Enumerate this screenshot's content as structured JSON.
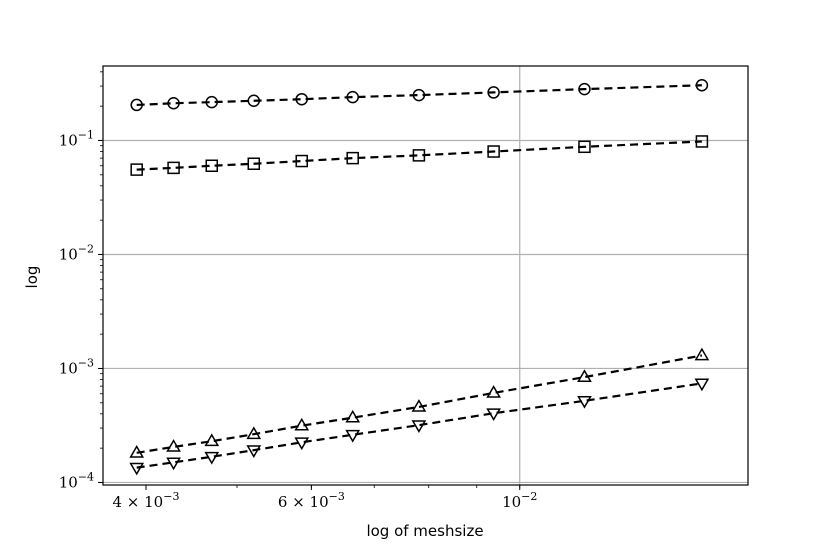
{
  "chart_data": {
    "type": "line",
    "xlabel": "log of meshsize",
    "ylabel": "log",
    "x_scale": "log",
    "y_scale": "log",
    "xlim": [
      0.0036,
      0.0175
    ],
    "ylim": [
      9.5e-05,
      0.45
    ],
    "grid": true,
    "x_ticks": [
      {
        "value": 0.004,
        "mantissa": "4",
        "exponent": "−3"
      },
      {
        "value": 0.006,
        "mantissa": "6",
        "exponent": "−3"
      },
      {
        "value": 0.01,
        "mantissa": "",
        "exponent": "−2"
      }
    ],
    "y_ticks": [
      {
        "value": 0.0001,
        "exponent": "−4"
      },
      {
        "value": 0.001,
        "exponent": "−3"
      },
      {
        "value": 0.01,
        "exponent": "−2"
      },
      {
        "value": 0.1,
        "exponent": "−1"
      }
    ],
    "x": [
      0.00391,
      0.00428,
      0.0047,
      0.00521,
      0.00586,
      0.00664,
      0.00781,
      0.00938,
      0.01172,
      0.01563
    ],
    "series": [
      {
        "marker": "circle",
        "values": [
          0.205,
          0.212,
          0.217,
          0.223,
          0.23,
          0.24,
          0.25,
          0.264,
          0.282,
          0.305
        ]
      },
      {
        "marker": "square",
        "values": [
          0.0555,
          0.0575,
          0.06,
          0.0625,
          0.066,
          0.07,
          0.074,
          0.08,
          0.088,
          0.098
        ]
      },
      {
        "marker": "triangle-up",
        "values": [
          0.000182,
          0.000205,
          0.00023,
          0.000265,
          0.000315,
          0.00037,
          0.00046,
          0.00061,
          0.00084,
          0.0013
        ]
      },
      {
        "marker": "triangle-down",
        "values": [
          0.000135,
          0.00015,
          0.000168,
          0.000192,
          0.000225,
          0.000262,
          0.000318,
          0.000405,
          0.00052,
          0.00074
        ]
      }
    ]
  }
}
